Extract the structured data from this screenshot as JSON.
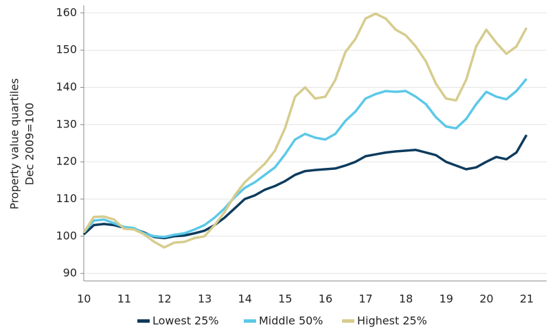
{
  "chart_data": {
    "type": "line",
    "ylabel": [
      "Property value quartiles",
      "Dec 2009=100"
    ],
    "x": [
      10,
      10.25,
      10.5,
      10.75,
      11,
      11.25,
      11.5,
      11.75,
      12,
      12.25,
      12.5,
      12.75,
      13,
      13.25,
      13.5,
      13.75,
      14,
      14.25,
      14.5,
      14.75,
      15,
      15.25,
      15.5,
      15.75,
      16,
      16.25,
      16.5,
      16.75,
      17,
      17.25,
      17.5,
      17.75,
      18,
      18.25,
      18.5,
      18.75,
      19,
      19.25,
      19.5,
      19.75,
      20,
      20.25,
      20.5,
      20.75,
      21
    ],
    "series": [
      {
        "name": "Lowest 25%",
        "color": "#0d3b5e",
        "values": [
          100.5,
          103,
          103.3,
          103,
          102.3,
          102,
          101,
          99.8,
          99.5,
          100,
          100.2,
          100.8,
          101.5,
          103,
          105,
          107.5,
          110,
          111,
          112.5,
          113.5,
          114.8,
          116.5,
          117.5,
          117.8,
          118,
          118.2,
          119,
          120,
          121.5,
          122,
          122.5,
          122.8,
          123,
          123.2,
          122.5,
          121.8,
          120,
          119,
          118,
          118.5,
          120,
          121.3,
          120.7,
          122.5,
          127.2
        ]
      },
      {
        "name": "Middle 50%",
        "color": "#5bc8e8",
        "values": [
          101,
          104.2,
          104.5,
          103.5,
          102.5,
          102.2,
          100.8,
          100,
          99.8,
          100.4,
          100.8,
          101.8,
          103,
          105,
          107.5,
          110.5,
          113,
          114.5,
          116.5,
          118.5,
          122,
          126,
          127.5,
          126.5,
          126,
          127.5,
          131,
          133.5,
          137,
          138.2,
          139,
          138.8,
          139,
          137.5,
          135.5,
          132,
          129.5,
          129,
          131.5,
          135.5,
          138.8,
          137.5,
          136.8,
          139,
          142.3
        ]
      },
      {
        "name": "Highest 25%",
        "color": "#d6cc8e",
        "values": [
          101,
          105.2,
          105.3,
          104.5,
          102,
          101.8,
          100.5,
          98.5,
          97,
          98.3,
          98.5,
          99.5,
          100,
          103,
          106.5,
          111,
          114.5,
          117,
          119.5,
          123,
          129,
          137.5,
          140,
          137,
          137.5,
          142,
          149.5,
          153,
          158.5,
          159.8,
          158.5,
          155.5,
          154,
          151,
          147,
          141,
          137,
          136.5,
          142,
          151,
          155.5,
          152,
          149,
          151,
          156
        ]
      }
    ],
    "xlim": [
      10,
      21.5
    ],
    "xticks": [
      {
        "value": 10.5,
        "label": "10"
      },
      {
        "value": 11.5,
        "label": "11"
      },
      {
        "value": 12.5,
        "label": "12"
      },
      {
        "value": 13.5,
        "label": "13"
      },
      {
        "value": 14.5,
        "label": "14"
      },
      {
        "value": 15.5,
        "label": "15"
      },
      {
        "value": 16.5,
        "label": "16"
      },
      {
        "value": 17.5,
        "label": "17"
      },
      {
        "value": 18.5,
        "label": "18"
      },
      {
        "value": 19.5,
        "label": "19"
      },
      {
        "value": 20.5,
        "label": "20"
      },
      {
        "value": 21.5,
        "label": "21"
      }
    ],
    "ylim": [
      88,
      162
    ],
    "yticks": [
      90,
      100,
      110,
      120,
      130,
      140,
      150,
      160
    ],
    "grid": true,
    "legend": "bottom"
  }
}
